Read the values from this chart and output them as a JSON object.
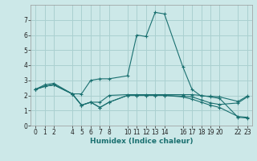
{
  "xlabel": "Humidex (Indice chaleur)",
  "ylabel": "",
  "bg_color": "#cce8e8",
  "grid_color": "#aad0d0",
  "line_color": "#1a7070",
  "xlim": [
    -0.5,
    23.5
  ],
  "ylim": [
    0,
    8
  ],
  "xticks": [
    0,
    1,
    2,
    4,
    5,
    6,
    7,
    8,
    10,
    11,
    12,
    13,
    14,
    16,
    17,
    18,
    19,
    20,
    22,
    23
  ],
  "yticks": [
    0,
    1,
    2,
    3,
    4,
    5,
    6,
    7
  ],
  "series": [
    {
      "x": [
        0,
        1,
        2,
        4,
        5,
        6,
        7,
        8,
        10,
        11,
        12,
        13,
        14,
        16,
        17,
        18,
        19,
        20,
        22,
        23
      ],
      "y": [
        2.4,
        2.7,
        2.8,
        2.1,
        2.1,
        3.0,
        3.1,
        3.1,
        3.3,
        6.0,
        5.9,
        7.5,
        7.4,
        3.9,
        2.4,
        1.95,
        1.95,
        1.9,
        1.6,
        1.95
      ]
    },
    {
      "x": [
        0,
        1,
        2,
        4,
        5,
        6,
        7,
        8,
        10,
        11,
        12,
        13,
        14,
        16,
        17,
        18,
        19,
        20,
        22,
        23
      ],
      "y": [
        2.4,
        2.6,
        2.7,
        2.1,
        1.35,
        1.55,
        1.55,
        2.0,
        2.05,
        2.05,
        2.05,
        2.05,
        2.05,
        2.05,
        2.05,
        2.0,
        1.9,
        1.8,
        0.55,
        0.5
      ]
    },
    {
      "x": [
        0,
        1,
        2,
        4,
        5,
        6,
        7,
        8,
        10,
        11,
        12,
        13,
        14,
        16,
        17,
        18,
        19,
        20,
        22,
        23
      ],
      "y": [
        2.4,
        2.6,
        2.7,
        2.1,
        1.35,
        1.55,
        1.2,
        1.55,
        2.0,
        2.0,
        2.0,
        2.0,
        2.0,
        1.95,
        1.9,
        1.7,
        1.5,
        1.4,
        1.5,
        1.9
      ]
    },
    {
      "x": [
        0,
        1,
        2,
        4,
        5,
        6,
        7,
        8,
        10,
        11,
        12,
        13,
        14,
        16,
        17,
        18,
        19,
        20,
        22,
        23
      ],
      "y": [
        2.4,
        2.6,
        2.7,
        2.1,
        1.35,
        1.55,
        1.2,
        1.55,
        2.0,
        2.0,
        2.0,
        2.0,
        2.0,
        1.9,
        1.75,
        1.55,
        1.35,
        1.2,
        0.6,
        0.55
      ]
    }
  ]
}
